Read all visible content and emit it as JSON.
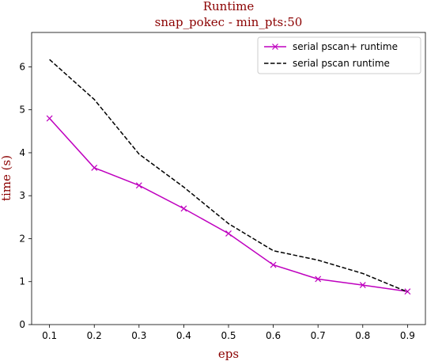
{
  "chart_data": {
    "type": "line",
    "title": "Runtime",
    "subtitle": "snap_pokec - min_pts:50",
    "xlabel": "eps",
    "ylabel": "time (s)",
    "x": [
      0.1,
      0.2,
      0.3,
      0.4,
      0.5,
      0.6,
      0.7,
      0.8,
      0.9
    ],
    "xticks": [
      "0.1",
      "0.2",
      "0.3",
      "0.4",
      "0.5",
      "0.6",
      "0.7",
      "0.8",
      "0.9"
    ],
    "yticks": [
      "0",
      "1",
      "2",
      "3",
      "4",
      "5",
      "6"
    ],
    "xlim": [
      0.06,
      0.94
    ],
    "ylim": [
      0,
      6.8
    ],
    "grid": false,
    "legend_position": "top-right",
    "series": [
      {
        "name": "serial pscan+ runtime",
        "values": [
          4.8,
          3.65,
          3.24,
          2.7,
          2.12,
          1.39,
          1.06,
          0.92,
          0.77
        ],
        "color": "#bf00bf",
        "line_style": "solid",
        "marker": "x"
      },
      {
        "name": "serial pscan runtime",
        "values": [
          6.17,
          5.24,
          3.97,
          3.2,
          2.35,
          1.72,
          1.5,
          1.19,
          0.76
        ],
        "color": "#000000",
        "line_style": "dashed",
        "marker": "none"
      }
    ],
    "title_color": "#8b0000",
    "axis_label_color": "#8b0000"
  }
}
